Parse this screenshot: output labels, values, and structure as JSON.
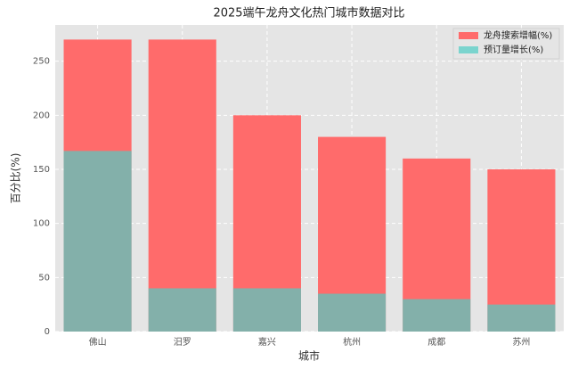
{
  "chart_data": {
    "type": "bar",
    "mode": "overlay",
    "title": "2025端午龙舟文化热门城市数据对比",
    "xlabel": "城市",
    "ylabel": "百分比(%)",
    "categories": [
      "佛山",
      "汨罗",
      "嘉兴",
      "杭州",
      "成都",
      "苏州"
    ],
    "series": [
      {
        "name": "龙舟搜索增幅(%)",
        "color": "#FF6B6B",
        "alpha": 1,
        "values": [
          270,
          270,
          200,
          180,
          160,
          150
        ]
      },
      {
        "name": "预订量增长(%)",
        "color": "#4ECDC4",
        "alpha": 0.7,
        "values": [
          167,
          40,
          40,
          35,
          30,
          25
        ]
      }
    ],
    "ylim": [
      0,
      283.5
    ],
    "yticks": [
      0,
      50,
      100,
      150,
      200,
      250
    ],
    "grid": true,
    "legend": "upper right"
  }
}
